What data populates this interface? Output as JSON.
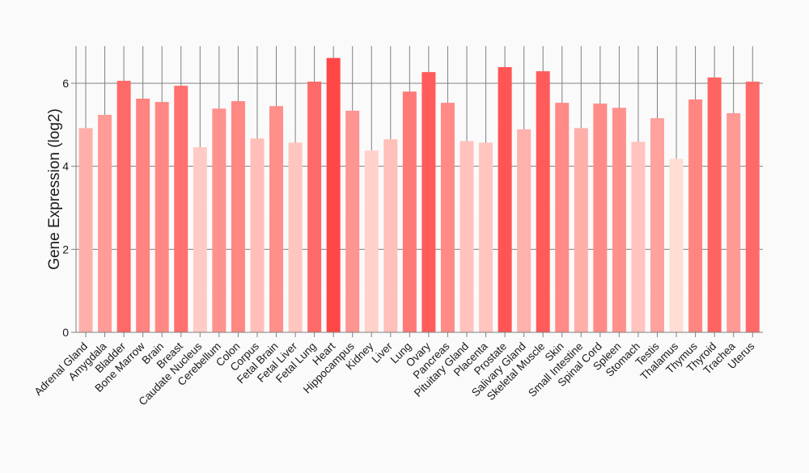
{
  "chart_data": {
    "type": "bar",
    "title": "",
    "xlabel": "",
    "ylabel": "Gene Expression (log2)",
    "ylim": [
      0,
      6.9
    ],
    "yticks": [
      0,
      2,
      4,
      6
    ],
    "grid": true,
    "color_low": "#FFDDD5",
    "color_high": "#FF4747",
    "categories": [
      "Adrenal Gland",
      "Amygdala",
      "Bladder",
      "Bone Marrow",
      "Brain",
      "Breast",
      "Caudate Nucleus",
      "Cerebellum",
      "Colon",
      "Corpus",
      "Fetal Brain",
      "Fetal Liver",
      "Fetal Lung",
      "Heart",
      "Hippocampus",
      "Kidney",
      "Liver",
      "Lung",
      "Ovary",
      "Pancreas",
      "Pituitary Gland",
      "Placenta",
      "Prostate",
      "Salivary Gland",
      "Skeletal Muscle",
      "Skin",
      "Small Intestine",
      "Spinal Cord",
      "Spleen",
      "Stomach",
      "Testis",
      "Thalamus",
      "Thymus",
      "Thyroid",
      "Trachea",
      "Uterus"
    ],
    "values": [
      4.92,
      5.24,
      6.06,
      5.63,
      5.55,
      5.94,
      4.46,
      5.39,
      5.57,
      4.67,
      5.45,
      4.57,
      6.04,
      6.61,
      5.34,
      4.38,
      4.65,
      5.8,
      6.27,
      5.53,
      4.61,
      4.57,
      6.39,
      4.89,
      6.29,
      5.53,
      4.92,
      5.51,
      5.41,
      4.59,
      5.16,
      4.18,
      5.61,
      6.14,
      5.28,
      6.04
    ]
  }
}
